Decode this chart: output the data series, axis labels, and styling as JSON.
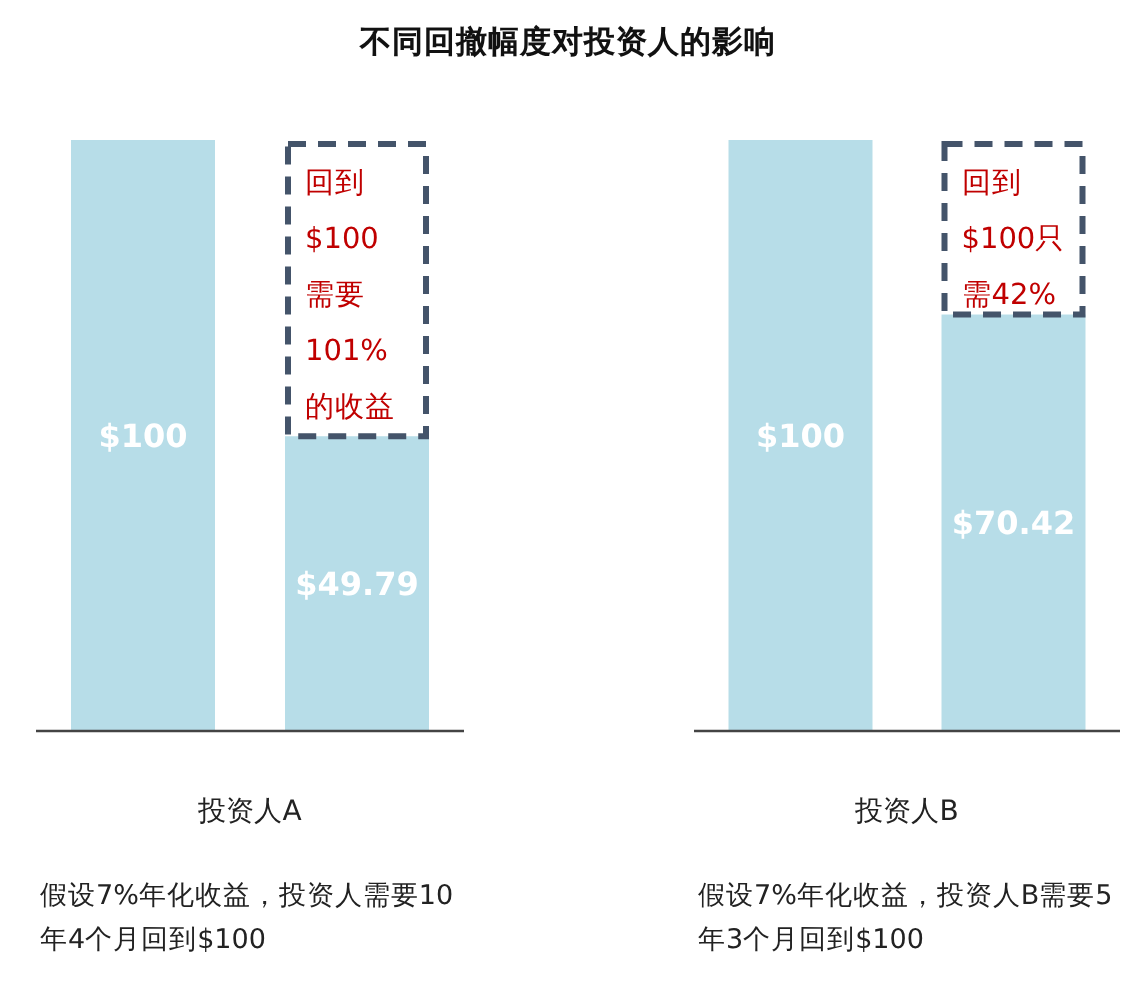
{
  "chart_data": [
    {
      "type": "bar",
      "title": "不同回撤幅度对投资人的影响",
      "categories": [
        null,
        null
      ],
      "values": [
        100,
        49.79
      ],
      "value_labels": [
        "$100",
        "$49.79"
      ],
      "color": "#b7dde8",
      "xlabel": "投资人A",
      "annotations": [
        "假设7%年化收益，投资人需要10年4个月回到$100",
        "回到",
        "$100",
        "需要",
        "101%",
        "的收益"
      ]
    },
    {
      "type": "bar",
      "categories": [
        null,
        null
      ],
      "values": [
        100,
        70.42
      ],
      "value_labels": [
        "$100",
        "$70.42"
      ],
      "color": "#b7dde8",
      "xlabel": "投资人B",
      "annotations": [
        "假设7%年化收益，投资人B需要5年3个月回到$100",
        "回到",
        "$100只",
        "需42%"
      ]
    }
  ]
}
